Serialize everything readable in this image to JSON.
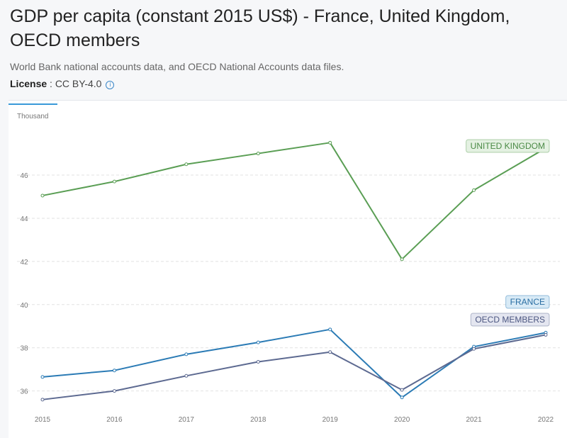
{
  "header": {
    "title": "GDP per capita (constant 2015 US$) - France, United Kingdom, OECD members",
    "source": "World Bank national accounts data, and OECD National Accounts data files.",
    "license_label": "License",
    "license_value": "CC BY-4.0",
    "info_icon": "info-icon"
  },
  "chart_data": {
    "type": "line",
    "ylabel": "Thousand",
    "x": [
      "2015",
      "2016",
      "2017",
      "2018",
      "2019",
      "2020",
      "2021",
      "2022"
    ],
    "ylim": [
      35.2,
      48.2
    ],
    "yticks": [
      36,
      38,
      40,
      42,
      44,
      46
    ],
    "grid": true,
    "series": [
      {
        "name": "UNITED KINGDOM",
        "color": "#5a9e54",
        "label_bg": "#e4f1e2",
        "values": [
          45.05,
          45.7,
          46.5,
          47.0,
          47.5,
          42.1,
          45.3,
          47.25
        ]
      },
      {
        "name": "FRANCE",
        "color": "#2b7bb5",
        "label_bg": "#d8eaf6",
        "values": [
          36.65,
          36.95,
          37.7,
          38.25,
          38.85,
          35.7,
          38.05,
          38.7
        ]
      },
      {
        "name": "OECD MEMBERS",
        "color": "#5d6a91",
        "label_bg": "#e4e6f0",
        "values": [
          35.6,
          36.0,
          36.7,
          37.35,
          37.8,
          36.05,
          37.95,
          38.6
        ]
      }
    ]
  }
}
